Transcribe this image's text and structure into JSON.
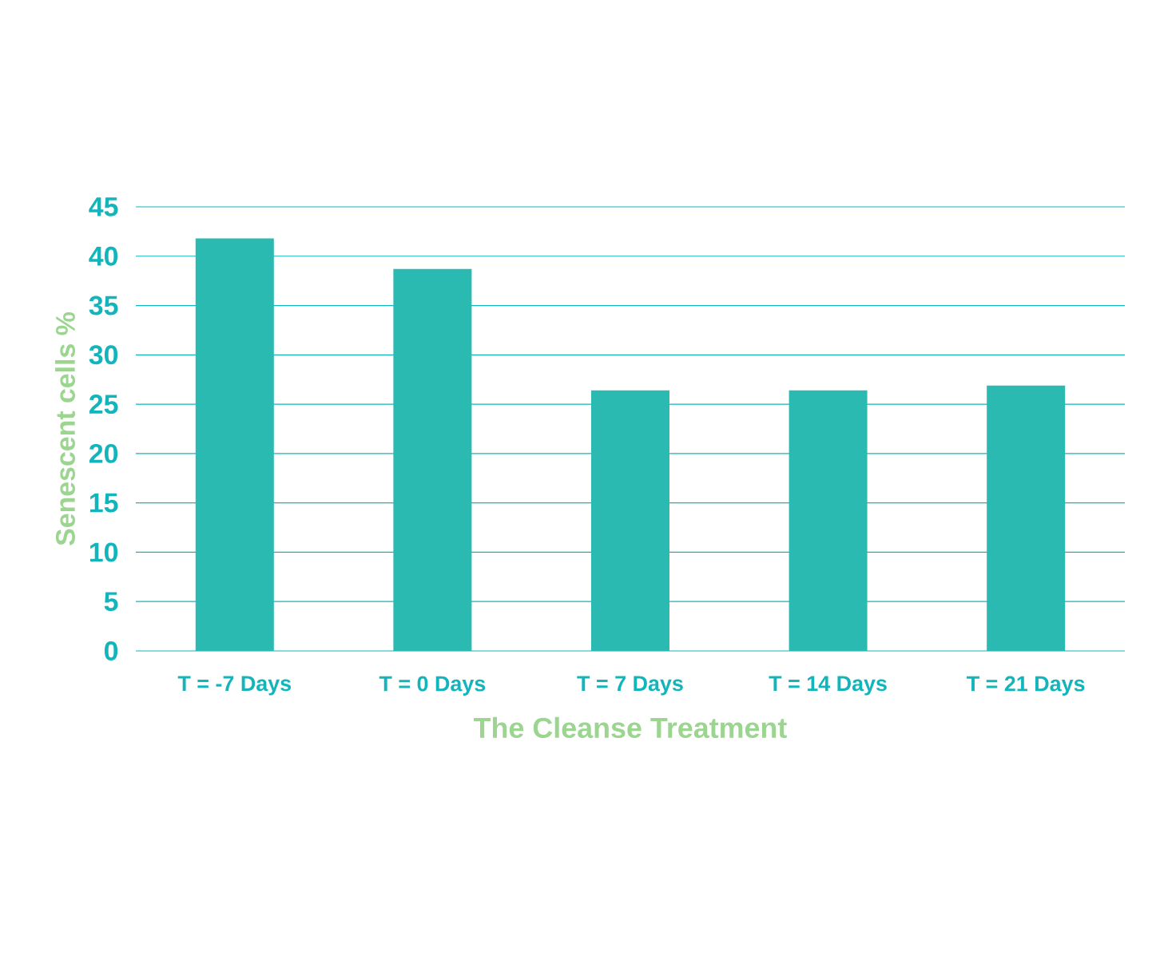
{
  "chart_data": {
    "type": "bar",
    "xlabel": "The Cleanse Treatment",
    "ylabel": "Senescent cells %",
    "categories": [
      "T = -7 Days",
      "T = 0 Days",
      "T = 7 Days",
      "T = 14 Days",
      "T = 21 Days"
    ],
    "values": [
      41.8,
      38.7,
      26.4,
      26.4,
      26.9
    ],
    "color": "#2bbab2",
    "ylim": [
      0,
      45
    ],
    "yticks": [
      0,
      5,
      10,
      15,
      20,
      25,
      30,
      35,
      40,
      45
    ],
    "grid": "y"
  }
}
